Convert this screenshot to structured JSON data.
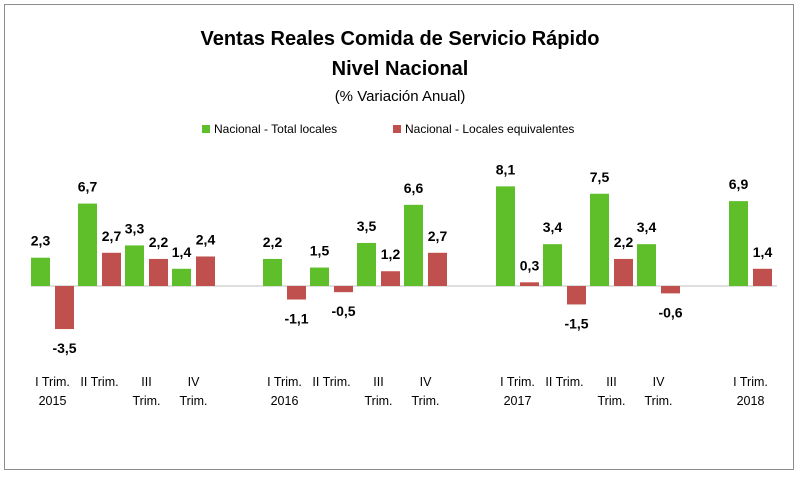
{
  "chart_data": {
    "type": "bar",
    "title": "Ventas Reales Comida de Servicio Rápido",
    "subtitle": "Nivel Nacional",
    "unit_label": "(% Variación Anual)",
    "xlabel": "",
    "ylabel": "",
    "grid": false,
    "legend_position": "top",
    "categories": [
      [
        "I Trim.",
        "2015"
      ],
      [
        "II Trim.",
        ""
      ],
      [
        "III",
        "Trim."
      ],
      [
        "IV",
        "Trim."
      ],
      [
        "I Trim.",
        "2016"
      ],
      [
        "II Trim.",
        ""
      ],
      [
        "III",
        "Trim."
      ],
      [
        "IV",
        "Trim."
      ],
      [
        "I Trim.",
        "2017"
      ],
      [
        "II Trim.",
        ""
      ],
      [
        "III",
        "Trim."
      ],
      [
        "IV",
        "Trim."
      ],
      [
        "I Trim.",
        "2018"
      ]
    ],
    "series": [
      {
        "name": "Nacional - Total locales",
        "color": "#5fbf2a",
        "values": [
          2.3,
          6.7,
          3.3,
          1.4,
          2.2,
          1.5,
          3.5,
          6.6,
          8.1,
          3.4,
          7.5,
          3.4,
          6.9
        ],
        "labels": [
          "2,3",
          "6,7",
          "3,3",
          "1,4",
          "2,2",
          "1,5",
          "3,5",
          "6,6",
          "8,1",
          "3,4",
          "7,5",
          "3,4",
          "6,9"
        ]
      },
      {
        "name": "Nacional - Locales equivalentes",
        "color": "#c0504d",
        "values": [
          -3.5,
          2.7,
          2.2,
          2.4,
          -1.1,
          -0.5,
          1.2,
          2.7,
          0.3,
          -1.5,
          2.2,
          -0.6,
          1.4
        ],
        "labels": [
          "-3,5",
          "2,7",
          "2,2",
          "2,4",
          "-1,1",
          "-0,5",
          "1,2",
          "2,7",
          "0,3",
          "-1,5",
          "2,2",
          "-0,6",
          "1,4"
        ]
      }
    ]
  }
}
